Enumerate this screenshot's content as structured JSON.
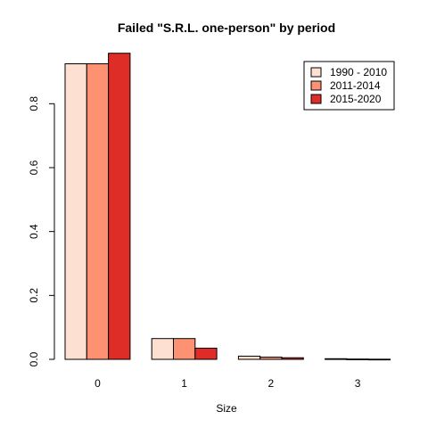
{
  "chart_data": {
    "type": "bar",
    "title": "Failed \"S.R.L. one-person\" by period",
    "xlabel": "Size",
    "ylabel": "",
    "ylim": [
      0,
      0.96
    ],
    "yticks": [
      "0.0",
      "0.2",
      "0.4",
      "0.6",
      "0.8"
    ],
    "categories": [
      "0",
      "1",
      "2",
      "3"
    ],
    "series": [
      {
        "name": "1990 - 2010",
        "color": "#fee0d2",
        "values": [
          0.925,
          0.065,
          0.01,
          0.002
        ]
      },
      {
        "name": "2011-2014",
        "color": "#fc9272",
        "values": [
          0.925,
          0.065,
          0.007,
          0.001
        ]
      },
      {
        "name": "2015-2020",
        "color": "#de2d26",
        "values": [
          0.958,
          0.035,
          0.005,
          0.0005
        ]
      }
    ],
    "legend_position": "top-right",
    "grid": false
  }
}
